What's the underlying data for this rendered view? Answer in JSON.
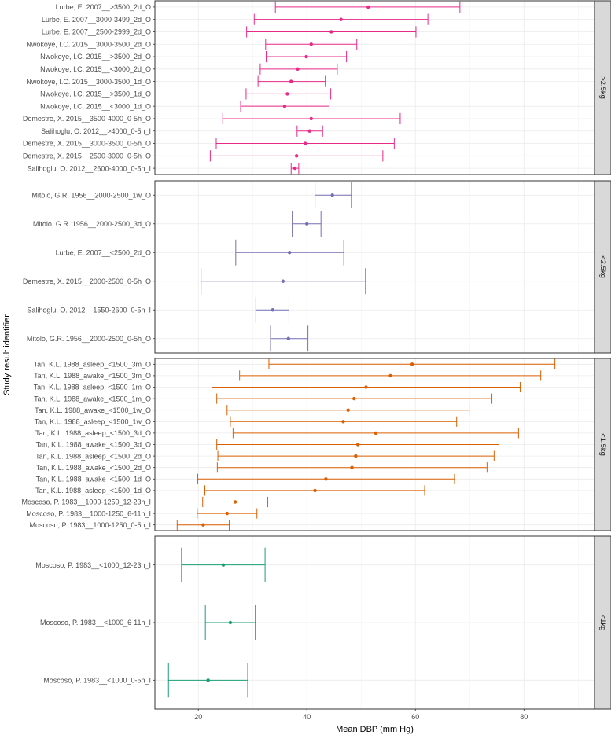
{
  "chart_data": {
    "type": "forest",
    "xlabel": "Mean DBP (mm Hg)",
    "ylabel": "Study result identifier",
    "xlim": [
      12,
      93
    ],
    "xticks": [
      20,
      40,
      60,
      80
    ],
    "xtick_labels": [
      "20",
      "40",
      "60",
      "80"
    ],
    "grid": true,
    "facets": [
      {
        "label": ">2.5kg",
        "color": "#e7298a",
        "rows": [
          {
            "label": "Lurbe, E. 2007__>3500_2d_O",
            "mean": 51.3,
            "lower": 34.2,
            "upper": 68.2
          },
          {
            "label": "Lurbe, E. 2007__3000-3499_2d_O",
            "mean": 46.3,
            "lower": 30.3,
            "upper": 62.3
          },
          {
            "label": "Lurbe, E. 2007__2500-2999_2d_O",
            "mean": 44.5,
            "lower": 28.9,
            "upper": 60.1
          },
          {
            "label": "Nwokoye, I.C. 2015__3000-3500_2d_O",
            "mean": 40.8,
            "lower": 32.4,
            "upper": 49.2
          },
          {
            "label": "Nwokoye, I.C. 2015__>3500_2d_O",
            "mean": 39.9,
            "lower": 32.5,
            "upper": 47.3
          },
          {
            "label": "Nwokoye, I.C. 2015__<3000_2d_O",
            "mean": 38.3,
            "lower": 31.4,
            "upper": 45.6
          },
          {
            "label": "Nwokoye, I.C. 2015__3000-3500_1d_O",
            "mean": 37.1,
            "lower": 31.0,
            "upper": 43.4
          },
          {
            "label": "Nwokoye, I.C. 2015__>3500_1d_O",
            "mean": 36.4,
            "lower": 28.8,
            "upper": 44.4
          },
          {
            "label": "Nwokoye, I.C. 2015__<3000_1d_O",
            "mean": 35.9,
            "lower": 27.8,
            "upper": 44.1
          },
          {
            "label": "Demestre, X. 2015__3500-4000_0-5h_O",
            "mean": 40.8,
            "lower": 24.5,
            "upper": 57.2
          },
          {
            "label": "Salihoglu, O. 2012__>4000_0-5h_I",
            "mean": 40.5,
            "lower": 38.2,
            "upper": 42.9
          },
          {
            "label": "Demestre, X. 2015__3000-3500_0-5h_O",
            "mean": 39.7,
            "lower": 23.3,
            "upper": 56.1
          },
          {
            "label": "Demestre, X. 2015__2500-3000_0-5h_O",
            "mean": 38.1,
            "lower": 22.2,
            "upper": 54.0
          },
          {
            "label": "Salihoglu, O. 2012__2600-4000_0-5h_I",
            "mean": 37.8,
            "lower": 37.1,
            "upper": 38.5
          }
        ]
      },
      {
        "label": "<2.5kg",
        "color": "#7570b3",
        "rows": [
          {
            "label": "Mitolo, G.R. 1956__2000-2500_1w_O",
            "mean": 44.7,
            "lower": 41.5,
            "upper": 48.2
          },
          {
            "label": "Mitolo, G.R. 1956__2000-2500_3d_O",
            "mean": 40.0,
            "lower": 37.3,
            "upper": 42.6
          },
          {
            "label": "Lurbe, E. 2007__<2500_2d_O",
            "mean": 36.8,
            "lower": 26.9,
            "upper": 46.8
          },
          {
            "label": "Demestre, X. 2015__2000-2500_0-5h_O",
            "mean": 35.6,
            "lower": 20.5,
            "upper": 50.8
          },
          {
            "label": "Salihoglu, O. 2012__1550-2600_0-5h_I",
            "mean": 33.7,
            "lower": 30.6,
            "upper": 36.7
          },
          {
            "label": "Mitolo, G.R. 1956__2000-2500_0-5h_O",
            "mean": 36.6,
            "lower": 33.3,
            "upper": 40.2
          }
        ]
      },
      {
        "label": "<1.5kg",
        "color": "#d95f02",
        "rows": [
          {
            "label": "Tan, K.L. 1988_asleep_<1500_3m_O",
            "mean": 59.4,
            "lower": 33.0,
            "upper": 85.7
          },
          {
            "label": "Tan, K.L. 1988_awake_<1500_3m_O",
            "mean": 55.4,
            "lower": 27.6,
            "upper": 83.1
          },
          {
            "label": "Tan, K.L. 1988_asleep_<1500_1m_O",
            "mean": 50.9,
            "lower": 22.5,
            "upper": 79.3
          },
          {
            "label": "Tan, K.L. 1988_awake_<1500_1m_O",
            "mean": 48.7,
            "lower": 23.4,
            "upper": 74.1
          },
          {
            "label": "Tan, K.L. 1988_awake_<1500_1w_O",
            "mean": 47.6,
            "lower": 25.3,
            "upper": 69.9
          },
          {
            "label": "Tan, K.L. 1988_asleep_<1500_1w_O",
            "mean": 46.7,
            "lower": 25.9,
            "upper": 67.6
          },
          {
            "label": "Tan, K.L. 1988_asleep_<1500_3d_O",
            "mean": 52.7,
            "lower": 26.4,
            "upper": 79.0
          },
          {
            "label": "Tan, K.L. 1988_awake_<1500_3d_O",
            "mean": 49.4,
            "lower": 23.4,
            "upper": 75.4
          },
          {
            "label": "Tan, K.L. 1988_asleep_<1500_2d_O",
            "mean": 49.0,
            "lower": 23.6,
            "upper": 74.5
          },
          {
            "label": "Tan, K.L. 1988_awake_<1500_2d_O",
            "mean": 48.3,
            "lower": 23.5,
            "upper": 73.2
          },
          {
            "label": "Tan, K.L. 1988_awake_<1500_1d_O",
            "mean": 43.5,
            "lower": 19.9,
            "upper": 67.2
          },
          {
            "label": "Tan, K.L. 1988_asleep_<1500_1d_O",
            "mean": 41.5,
            "lower": 21.2,
            "upper": 61.7
          },
          {
            "label": "Moscoso, P. 1983__1000-1250_12-23h_I",
            "mean": 26.8,
            "lower": 20.8,
            "upper": 32.8
          },
          {
            "label": "Moscoso, P. 1983__1000-1250_6-11h_I",
            "mean": 25.3,
            "lower": 19.8,
            "upper": 30.8
          },
          {
            "label": "Moscoso, P. 1983__1000-1250_0-5h_I",
            "mean": 20.9,
            "lower": 16.1,
            "upper": 25.7
          }
        ]
      },
      {
        "label": "<1kg",
        "color": "#1b9e77",
        "rows": [
          {
            "label": "Moscoso, P. 1983__<1000_12-23h_I",
            "mean": 24.6,
            "lower": 16.9,
            "upper": 32.3
          },
          {
            "label": "Moscoso, P. 1983__<1000_6-11h_I",
            "mean": 25.9,
            "lower": 21.3,
            "upper": 30.5
          },
          {
            "label": "Moscoso, P. 1983__<1000_0-5h_I",
            "mean": 21.8,
            "lower": 14.5,
            "upper": 29.1
          }
        ]
      }
    ]
  }
}
